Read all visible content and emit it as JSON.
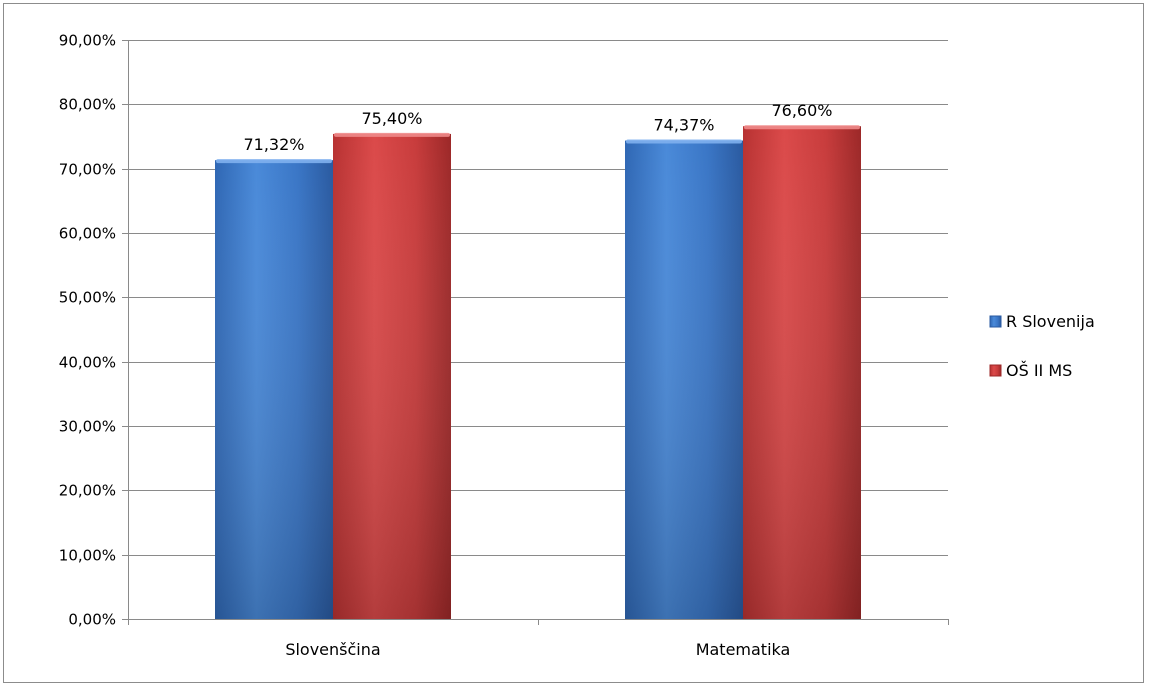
{
  "chart_data": {
    "type": "bar",
    "categories": [
      "Slovenščina",
      "Matematika"
    ],
    "series": [
      {
        "name": "R Slovenija",
        "values": [
          71.32,
          74.37
        ],
        "labels": [
          "71,32%",
          "74,37%"
        ],
        "color": "#3a7bd0",
        "color_dark": "#2a5ea8"
      },
      {
        "name": "OŠ II MS",
        "values": [
          75.4,
          76.6
        ],
        "labels": [
          "75,40%",
          "76,60%"
        ],
        "color": "#d24040",
        "color_dark": "#9e2b2b"
      }
    ],
    "ylim": [
      0,
      90
    ],
    "yticks": [
      0,
      10,
      20,
      30,
      40,
      50,
      60,
      70,
      80,
      90
    ],
    "ytick_labels": [
      "0,00%",
      "10,00%",
      "20,00%",
      "30,00%",
      "40,00%",
      "50,00%",
      "60,00%",
      "70,00%",
      "80,00%",
      "90,00%"
    ],
    "grid": true,
    "legend_position": "right",
    "title": "",
    "xlabel": "",
    "ylabel": ""
  }
}
